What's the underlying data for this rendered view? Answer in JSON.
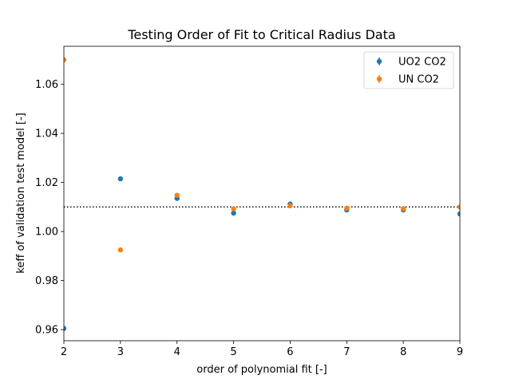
{
  "chart_data": {
    "type": "scatter",
    "title": "Testing Order of Fit to Critical Radius Data",
    "xlabel": "order of polynomial fit [-]",
    "ylabel": "keff of validation test model [-]",
    "xlim": [
      2,
      9
    ],
    "ylim": [
      0.9555,
      1.0755
    ],
    "x_ticks": [
      2,
      3,
      4,
      5,
      6,
      7,
      8,
      9
    ],
    "y_ticks": [
      0.96,
      0.98,
      1.0,
      1.02,
      1.04,
      1.06
    ],
    "y_tick_labels": [
      "0.96",
      "0.98",
      "1.00",
      "1.02",
      "1.04",
      "1.06"
    ],
    "grid": false,
    "legend_position": "top-right",
    "reference_line": {
      "y": 1.01,
      "style": "dotted",
      "color": "#000000"
    },
    "series": [
      {
        "name": "UO2 CO2",
        "color": "#1f77b4",
        "x": [
          2,
          3,
          4,
          5,
          6,
          7,
          8,
          9
        ],
        "y": [
          0.9605,
          1.0215,
          1.0135,
          1.0075,
          1.0112,
          1.0088,
          1.0088,
          1.0072
        ]
      },
      {
        "name": "UN CO2",
        "color": "#ff7f0e",
        "x": [
          2,
          3,
          4,
          5,
          6,
          7,
          8,
          9
        ],
        "y": [
          1.07,
          0.9925,
          1.0148,
          1.0092,
          1.0105,
          1.0095,
          1.0093,
          1.01
        ]
      }
    ]
  }
}
